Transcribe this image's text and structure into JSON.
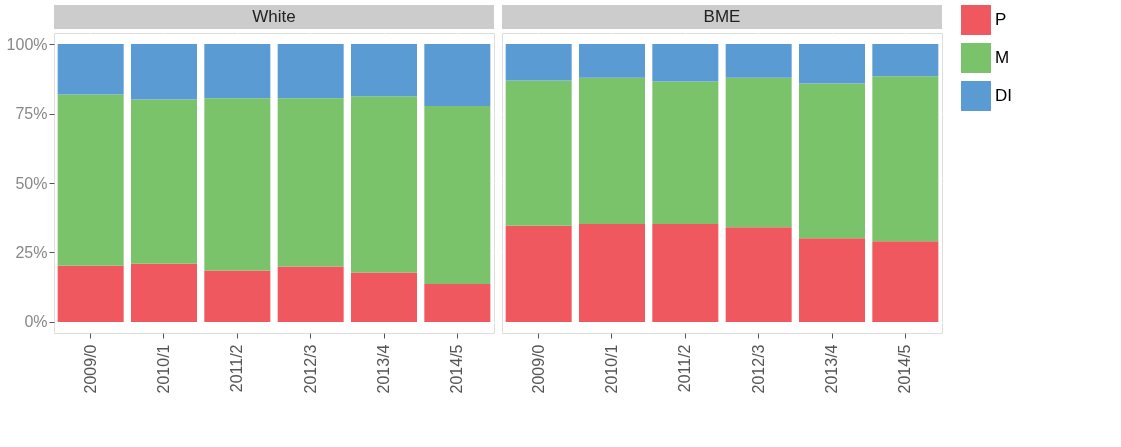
{
  "chart_data": [
    {
      "type": "bar",
      "title": "White",
      "stacked": true,
      "categories": [
        "2009/0",
        "2010/1",
        "2011/2",
        "2012/3",
        "2013/4",
        "2014/5"
      ],
      "series": [
        {
          "name": "P",
          "color": "#f0585f",
          "values": [
            20.2,
            20.9,
            18.5,
            19.9,
            17.8,
            13.6
          ]
        },
        {
          "name": "M",
          "color": "#7bc36a",
          "values": [
            61.7,
            59.2,
            62.0,
            60.6,
            63.4,
            64.1
          ]
        },
        {
          "name": "DI",
          "color": "#5a9bd4",
          "values": [
            18.1,
            19.9,
            19.5,
            19.5,
            18.8,
            22.3
          ]
        }
      ],
      "ylim": [
        -4,
        104
      ],
      "yticks": [
        {
          "value": 0,
          "label": "0%"
        },
        {
          "value": 25,
          "label": "25%"
        },
        {
          "value": 50,
          "label": "50%"
        },
        {
          "value": 75,
          "label": "75%"
        },
        {
          "value": 100,
          "label": "100%"
        }
      ],
      "grid": true,
      "legend": "right"
    },
    {
      "type": "bar",
      "title": "BME",
      "stacked": true,
      "categories": [
        "2009/0",
        "2010/1",
        "2011/2",
        "2012/3",
        "2013/4",
        "2014/5"
      ],
      "series": [
        {
          "name": "P",
          "color": "#f0585f",
          "values": [
            34.6,
            35.2,
            35.2,
            34.1,
            30.1,
            29.0
          ]
        },
        {
          "name": "M",
          "color": "#7bc36a",
          "values": [
            52.3,
            52.7,
            51.3,
            53.8,
            55.7,
            59.4
          ]
        },
        {
          "name": "DI",
          "color": "#5a9bd4",
          "values": [
            13.1,
            12.1,
            13.5,
            12.1,
            14.2,
            11.6
          ]
        }
      ],
      "ylim": [
        -4,
        104
      ],
      "yticks": [
        0,
        25,
        50,
        75,
        100
      ],
      "grid": true,
      "tick_labels": "x",
      "legend": "right"
    }
  ]
}
